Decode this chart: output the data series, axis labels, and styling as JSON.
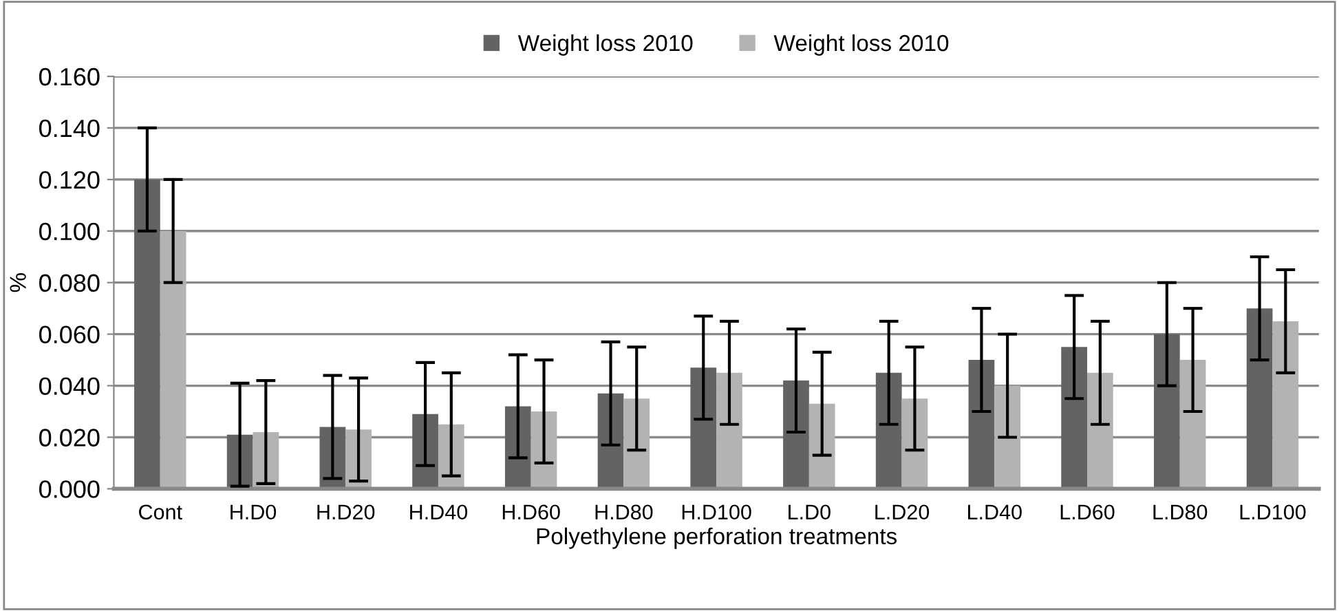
{
  "chart_data": {
    "type": "bar",
    "xlabel": "Polyethylene perforation treatments",
    "ylabel": "%",
    "categories": [
      "Cont",
      "H.D0",
      "H.D20",
      "H.D40",
      "H.D60",
      "H.D80",
      "H.D100",
      "L.D0",
      "L.D20",
      "L.D40",
      "L.D60",
      "L.D80",
      "L.D100"
    ],
    "series": [
      {
        "name": "Weight loss 2010",
        "color": "#636363",
        "values": [
          0.12,
          0.021,
          0.024,
          0.029,
          0.032,
          0.037,
          0.047,
          0.042,
          0.045,
          0.05,
          0.055,
          0.06,
          0.07
        ],
        "errors": [
          0.02,
          0.02,
          0.02,
          0.02,
          0.02,
          0.02,
          0.02,
          0.02,
          0.02,
          0.02,
          0.02,
          0.02,
          0.02
        ]
      },
      {
        "name": "Weight loss 2010",
        "color": "#b3b3b3",
        "values": [
          0.1,
          0.022,
          0.023,
          0.025,
          0.03,
          0.035,
          0.045,
          0.033,
          0.035,
          0.04,
          0.045,
          0.05,
          0.065
        ],
        "errors": [
          0.02,
          0.02,
          0.02,
          0.02,
          0.02,
          0.02,
          0.02,
          0.02,
          0.02,
          0.02,
          0.02,
          0.02,
          0.02
        ]
      }
    ],
    "ylim": [
      0,
      0.16
    ],
    "yticks": [
      {
        "value": 0,
        "label": "0.000"
      },
      {
        "value": 0.02,
        "label": "0.020"
      },
      {
        "value": 0.04,
        "label": "0.040"
      },
      {
        "value": 0.06,
        "label": "0.060"
      },
      {
        "value": 0.08,
        "label": "0.080"
      },
      {
        "value": 0.1,
        "label": "0.100"
      },
      {
        "value": 0.12,
        "label": "0.120"
      },
      {
        "value": 0.14,
        "label": "0.140"
      },
      {
        "value": 0.16,
        "label": "0.160"
      }
    ],
    "grid": "y",
    "legend": "top"
  }
}
